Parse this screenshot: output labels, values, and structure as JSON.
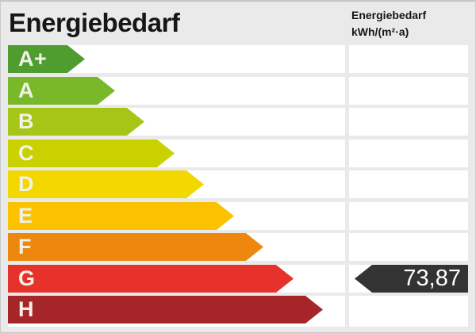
{
  "header": {
    "title": "Energiebedarf",
    "unit_line1": "Energiebedarf",
    "unit_line2": "kWh/(m²·a)"
  },
  "scale": {
    "letter_color": "#f3f1e7",
    "ratings": [
      {
        "label": "A+",
        "color": "#4e9d2e",
        "arrow_width": 97
      },
      {
        "label": "A",
        "color": "#79b829",
        "arrow_width": 135
      },
      {
        "label": "B",
        "color": "#a5c617",
        "arrow_width": 172
      },
      {
        "label": "C",
        "color": "#c9d200",
        "arrow_width": 210
      },
      {
        "label": "D",
        "color": "#f3d800",
        "arrow_width": 247
      },
      {
        "label": "E",
        "color": "#fcc200",
        "arrow_width": 285
      },
      {
        "label": "F",
        "color": "#ee870d",
        "arrow_width": 322
      },
      {
        "label": "G",
        "color": "#e6322a",
        "arrow_width": 360
      },
      {
        "label": "H",
        "color": "#a52528",
        "arrow_width": 397
      }
    ]
  },
  "marker": {
    "value": "73,87",
    "rating_row": "G",
    "color": "#333333",
    "text_color": "#ffffff"
  },
  "chart_data": {
    "type": "bar",
    "title": "Energiebedarf",
    "ylabel": "kWh/(m²·a)",
    "categories": [
      "A+",
      "A",
      "B",
      "C",
      "D",
      "E",
      "F",
      "G",
      "H"
    ],
    "values": [
      97,
      135,
      172,
      210,
      247,
      285,
      322,
      360,
      397
    ],
    "bar_colors": [
      "#4e9d2e",
      "#79b829",
      "#a5c617",
      "#c9d200",
      "#f3d800",
      "#fcc200",
      "#ee870d",
      "#e6322a",
      "#a52528"
    ],
    "annotations": [
      {
        "text": "73,87",
        "category": "G",
        "meaning": "energy demand value in kWh/(m²·a)"
      }
    ],
    "legend_position": "none",
    "grid": false
  }
}
